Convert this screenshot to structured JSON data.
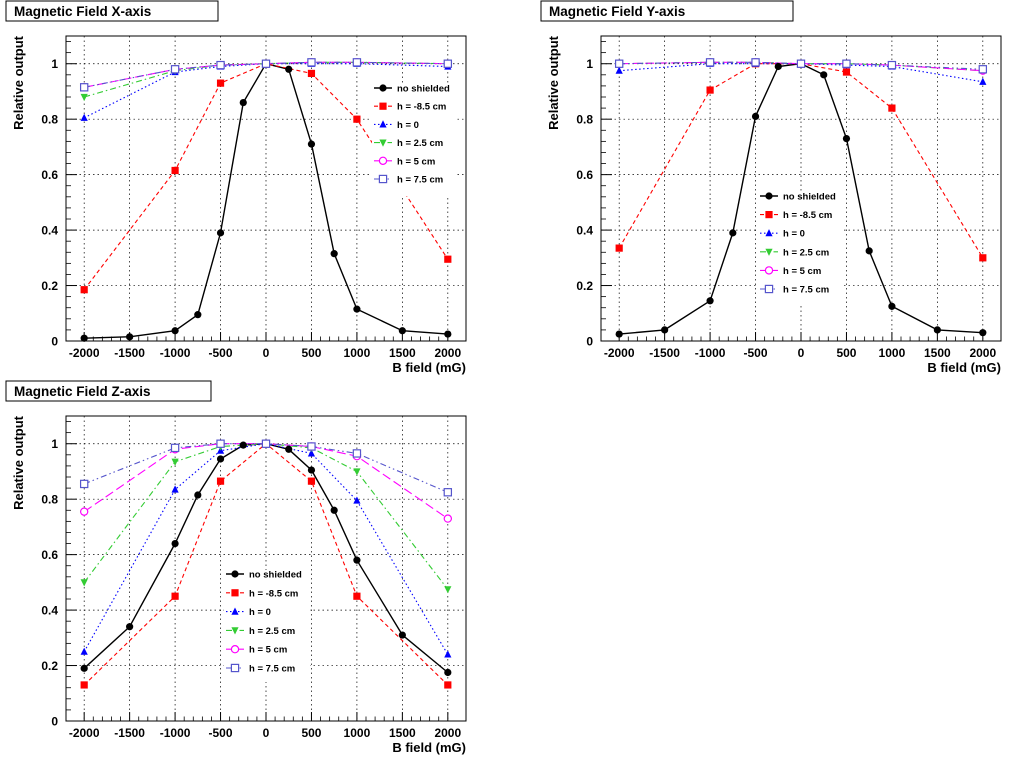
{
  "chart_data": [
    {
      "type": "line",
      "title": "Magnetic Field X-axis",
      "xlabel": "B field (mG)",
      "ylabel": "Relative output",
      "xlim": [
        -2200,
        2200
      ],
      "ylim": [
        0,
        1.1
      ],
      "xticks": [
        "-2000",
        "-1500",
        "-1000",
        "-500",
        "0",
        "500",
        "1000",
        "1500",
        "2000"
      ],
      "yticks": [
        "0",
        "0.2",
        "0.4",
        "0.6",
        "0.8",
        "1"
      ],
      "grid": true,
      "legend_position": "top-right",
      "series": [
        {
          "name": "no shielded",
          "color": "#000000",
          "marker": "circle",
          "line": "solid",
          "x": [
            -2000,
            -1500,
            -1000,
            -750,
            -500,
            -250,
            0,
            250,
            500,
            750,
            1000,
            1500,
            2000
          ],
          "y": [
            0.01,
            0.015,
            0.037,
            0.095,
            0.39,
            0.86,
            1.0,
            0.98,
            0.71,
            0.315,
            0.115,
            0.037,
            0.025
          ]
        },
        {
          "name": "h = -8.5 cm",
          "color": "#ff0000",
          "marker": "square",
          "line": "dashed",
          "x": [
            -2000,
            -1000,
            -500,
            0,
            500,
            1000,
            2000
          ],
          "y": [
            0.185,
            0.615,
            0.93,
            1.0,
            0.965,
            0.8,
            0.295
          ]
        },
        {
          "name": "h = 0",
          "color": "#0000ff",
          "marker": "triangle-up",
          "line": "dotted",
          "x": [
            -2000,
            -1000,
            -500,
            0,
            500,
            1000,
            2000
          ],
          "y": [
            0.805,
            0.97,
            0.99,
            1.0,
            1.0,
            1.0,
            0.99
          ]
        },
        {
          "name": "h = 2.5 cm",
          "color": "#33cc33",
          "marker": "triangle-down",
          "line": "dashdot",
          "x": [
            -2000,
            -1000,
            -500,
            0,
            500,
            1000,
            2000
          ],
          "y": [
            0.88,
            0.975,
            0.995,
            1.0,
            1.005,
            1.005,
            1.0
          ]
        },
        {
          "name": "h = 5 cm",
          "color": "#ff00ff",
          "marker": "open-circle",
          "line": "longdash",
          "x": [
            -2000,
            -1000,
            -500,
            0,
            500,
            1000,
            2000
          ],
          "y": [
            0.915,
            0.98,
            0.995,
            1.0,
            1.005,
            1.005,
            1.0
          ]
        },
        {
          "name": "h = 7.5 cm",
          "color": "#5555cc",
          "marker": "open-square",
          "line": "dashdotdot",
          "x": [
            -2000,
            -1000,
            -500,
            0,
            500,
            1000,
            2000
          ],
          "y": [
            0.915,
            0.98,
            0.995,
            1.0,
            1.005,
            1.005,
            1.0
          ]
        }
      ]
    },
    {
      "type": "line",
      "title": "Magnetic Field Y-axis",
      "xlabel": "B field (mG)",
      "ylabel": "Relative output",
      "xlim": [
        -2200,
        2200
      ],
      "ylim": [
        0,
        1.1
      ],
      "xticks": [
        "-2000",
        "-1500",
        "-1000",
        "-500",
        "0",
        "500",
        "1000",
        "1500",
        "2000"
      ],
      "yticks": [
        "0",
        "0.2",
        "0.4",
        "0.6",
        "0.8",
        "1"
      ],
      "grid": true,
      "legend_position": "center-left",
      "series": [
        {
          "name": "no shielded",
          "color": "#000000",
          "marker": "circle",
          "line": "solid",
          "x": [
            -2000,
            -1500,
            -1000,
            -750,
            -500,
            -250,
            0,
            250,
            500,
            750,
            1000,
            1500,
            2000
          ],
          "y": [
            0.025,
            0.04,
            0.145,
            0.39,
            0.81,
            0.99,
            1.0,
            0.96,
            0.73,
            0.325,
            0.125,
            0.04,
            0.03
          ]
        },
        {
          "name": "h = -8.5 cm",
          "color": "#ff0000",
          "marker": "square",
          "line": "dashed",
          "x": [
            -2000,
            -1000,
            -500,
            0,
            500,
            1000,
            2000
          ],
          "y": [
            0.335,
            0.905,
            1.0,
            1.0,
            0.97,
            0.84,
            0.3
          ]
        },
        {
          "name": "h = 0",
          "color": "#0000ff",
          "marker": "triangle-up",
          "line": "dotted",
          "x": [
            -2000,
            -1000,
            -500,
            0,
            500,
            1000,
            2000
          ],
          "y": [
            0.975,
            1.0,
            1.0,
            1.0,
            0.995,
            0.99,
            0.935
          ]
        },
        {
          "name": "h = 2.5 cm",
          "color": "#33cc33",
          "marker": "triangle-down",
          "line": "dashdot",
          "x": [
            -2000,
            -1000,
            -500,
            0,
            500,
            1000,
            2000
          ],
          "y": [
            1.0,
            1.005,
            1.005,
            1.0,
            1.0,
            0.995,
            0.975
          ]
        },
        {
          "name": "h = 5 cm",
          "color": "#ff00ff",
          "marker": "open-circle",
          "line": "longdash",
          "x": [
            -2000,
            -1000,
            -500,
            0,
            500,
            1000,
            2000
          ],
          "y": [
            1.0,
            1.005,
            1.005,
            1.0,
            1.0,
            0.995,
            0.975
          ]
        },
        {
          "name": "h = 7.5 cm",
          "color": "#5555cc",
          "marker": "open-square",
          "line": "dashdotdot",
          "x": [
            -2000,
            -1000,
            -500,
            0,
            500,
            1000,
            2000
          ],
          "y": [
            1.0,
            1.005,
            1.005,
            1.0,
            1.0,
            0.995,
            0.98
          ]
        }
      ]
    },
    {
      "type": "line",
      "title": "Magnetic Field Z-axis",
      "xlabel": "B field (mG)",
      "ylabel": "Relative output",
      "xlim": [
        -2200,
        2200
      ],
      "ylim": [
        0,
        1.1
      ],
      "xticks": [
        "-2000",
        "-1500",
        "-1000",
        "-500",
        "0",
        "500",
        "1000",
        "1500",
        "2000"
      ],
      "yticks": [
        "0",
        "0.2",
        "0.4",
        "0.6",
        "0.8",
        "1"
      ],
      "grid": true,
      "legend_position": "lower-center",
      "series": [
        {
          "name": "no shielded",
          "color": "#000000",
          "marker": "circle",
          "line": "solid",
          "x": [
            -2000,
            -1500,
            -1000,
            -750,
            -500,
            -250,
            0,
            250,
            500,
            750,
            1000,
            1500,
            2000
          ],
          "y": [
            0.19,
            0.34,
            0.64,
            0.815,
            0.945,
            0.995,
            1.0,
            0.98,
            0.905,
            0.76,
            0.58,
            0.31,
            0.175
          ]
        },
        {
          "name": "h = -8.5 cm",
          "color": "#ff0000",
          "marker": "square",
          "line": "dashed",
          "x": [
            -2000,
            -1000,
            -500,
            0,
            500,
            1000,
            2000
          ],
          "y": [
            0.13,
            0.45,
            0.865,
            1.0,
            0.865,
            0.45,
            0.13
          ]
        },
        {
          "name": "h = 0",
          "color": "#0000ff",
          "marker": "triangle-up",
          "line": "dotted",
          "x": [
            -2000,
            -1000,
            -500,
            0,
            500,
            1000,
            2000
          ],
          "y": [
            0.25,
            0.835,
            0.975,
            1.0,
            0.965,
            0.795,
            0.24
          ]
        },
        {
          "name": "h = 2.5 cm",
          "color": "#33cc33",
          "marker": "triangle-down",
          "line": "dashdot",
          "x": [
            -2000,
            -1000,
            -500,
            0,
            500,
            1000,
            2000
          ],
          "y": [
            0.5,
            0.935,
            0.99,
            1.0,
            0.985,
            0.9,
            0.475
          ]
        },
        {
          "name": "h = 5 cm",
          "color": "#ff00ff",
          "marker": "open-circle",
          "line": "longdash",
          "x": [
            -2000,
            -1000,
            -500,
            0,
            500,
            1000,
            2000
          ],
          "y": [
            0.755,
            0.98,
            1.0,
            1.0,
            0.99,
            0.955,
            0.73
          ]
        },
        {
          "name": "h = 7.5 cm",
          "color": "#5555cc",
          "marker": "open-square",
          "line": "dashdotdot",
          "x": [
            -2000,
            -1000,
            -500,
            0,
            500,
            1000,
            2000
          ],
          "y": [
            0.855,
            0.985,
            1.0,
            1.0,
            0.99,
            0.965,
            0.825
          ]
        }
      ]
    }
  ]
}
